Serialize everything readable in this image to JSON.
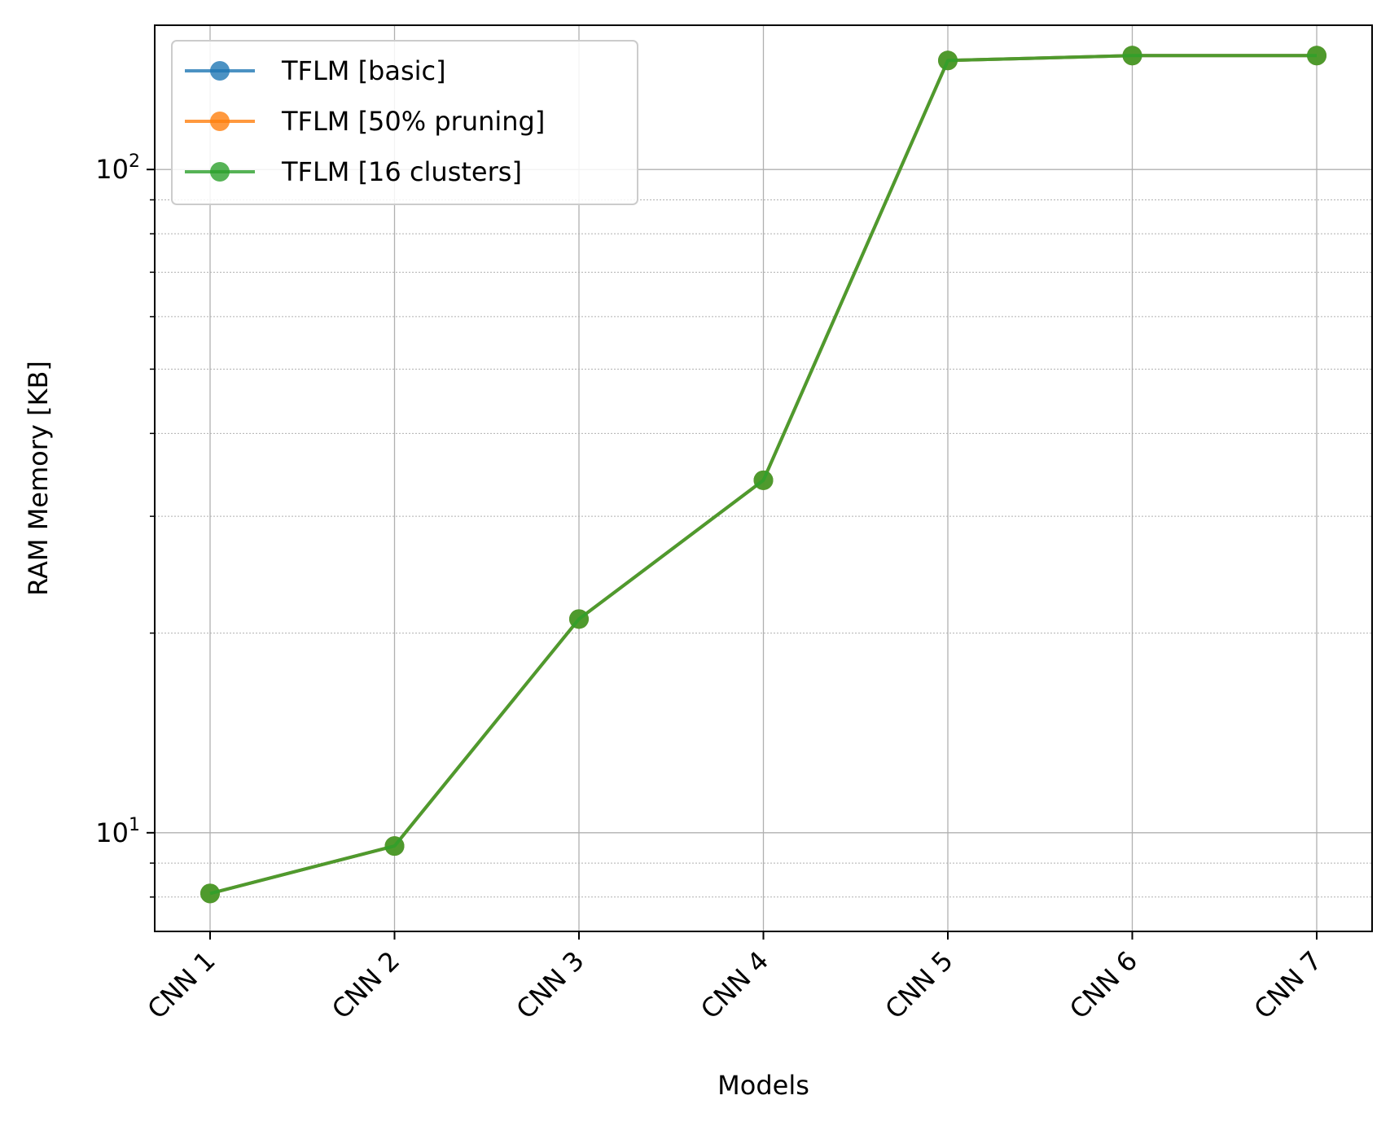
{
  "chart_data": {
    "type": "line",
    "title": "",
    "xlabel": "Models",
    "ylabel": "RAM Memory [KB]",
    "categories": [
      "CNN 1",
      "CNN 2",
      "CNN 3",
      "CNN 4",
      "CNN 5",
      "CNN 6",
      "CNN 7"
    ],
    "y_scale": "log",
    "ylim": [
      7.1,
      165
    ],
    "y_major_ticks": [
      {
        "value": 10,
        "base": "10",
        "exp": "1"
      },
      {
        "value": 100,
        "base": "10",
        "exp": "2"
      }
    ],
    "y_minor_ticks": [
      8,
      9,
      20,
      30,
      40,
      50,
      60,
      70,
      80,
      90
    ],
    "grid": true,
    "legend_position": "upper-left",
    "series": [
      {
        "name": "TFLM [basic]",
        "color": "#1f77b4",
        "values": [
          8.1,
          9.55,
          21.0,
          34.0,
          146.0,
          148.5,
          148.5
        ]
      },
      {
        "name": "TFLM [50% pruning]",
        "color": "#ff7f0e",
        "values": [
          8.1,
          9.55,
          21.0,
          34.0,
          146.0,
          148.5,
          148.5
        ]
      },
      {
        "name": "TFLM [16 clusters]",
        "color": "#2ca02c",
        "values": [
          8.1,
          9.55,
          21.0,
          34.0,
          146.0,
          148.5,
          148.5
        ]
      }
    ]
  }
}
